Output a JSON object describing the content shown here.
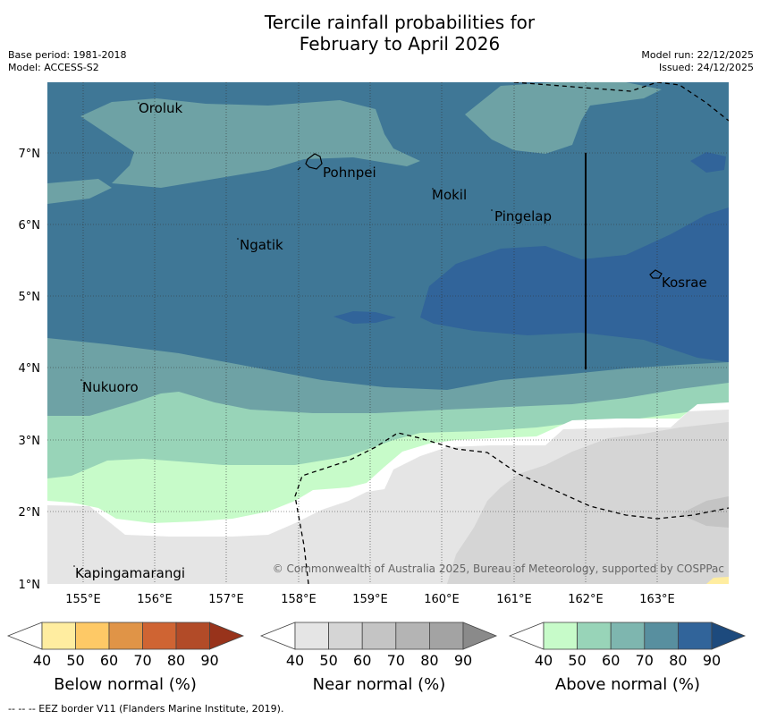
{
  "title": {
    "line1": "Tercile rainfall probabilities for",
    "line2": "February to April 2026"
  },
  "meta": {
    "base_period": "Base period: 1981-2018",
    "model": "Model: ACCESS-S2",
    "model_run": "Model run: 22/12/2025",
    "issued": "Issued: 24/12/2025"
  },
  "map": {
    "lat_labels": [
      "7°N",
      "6°N",
      "5°N",
      "4°N",
      "3°N",
      "2°N",
      "1°N"
    ],
    "lon_labels": [
      "155°E",
      "156°E",
      "157°E",
      "158°E",
      "159°E",
      "160°E",
      "161°E",
      "162°E",
      "163°E"
    ],
    "places": {
      "oroluk": "Oroluk",
      "pohnpei": "Pohnpei",
      "mokil": "Mokil",
      "pingelap": "Pingelap",
      "ngatik": "Ngatik",
      "kosrae": "Kosrae",
      "nukuoro": "Nukuoro",
      "kapingamarangi": "Kapingamarangi"
    },
    "copyright": "© Commonwealth of Australia 2025, Bureau of Meteorology, supported by COSPPac"
  },
  "legend": {
    "below": {
      "label": "Below normal (%)",
      "ticks": [
        "40",
        "50",
        "60",
        "70",
        "80",
        "90"
      ],
      "colors": [
        "#ffeda0",
        "#fec966",
        "#e09447",
        "#cf6433",
        "#b24b28",
        "#98331b"
      ]
    },
    "near": {
      "label": "Near normal (%)",
      "ticks": [
        "40",
        "50",
        "60",
        "70",
        "80",
        "90"
      ],
      "colors": [
        "#e5e5e5",
        "#d5d5d5",
        "#c4c4c4",
        "#b4b4b4",
        "#a3a3a3",
        "#8a8a8a"
      ]
    },
    "above": {
      "label": "Above normal (%)",
      "ticks": [
        "40",
        "50",
        "60",
        "70",
        "80",
        "90"
      ],
      "colors": [
        "#c7fbc9",
        "#98d4b8",
        "#7eb6af",
        "#588f9f",
        "#31649a",
        "#1d4a7d"
      ]
    }
  },
  "footnote": "--  --  -- EEZ border V11 (Flanders Marine Institute, 2019)."
}
